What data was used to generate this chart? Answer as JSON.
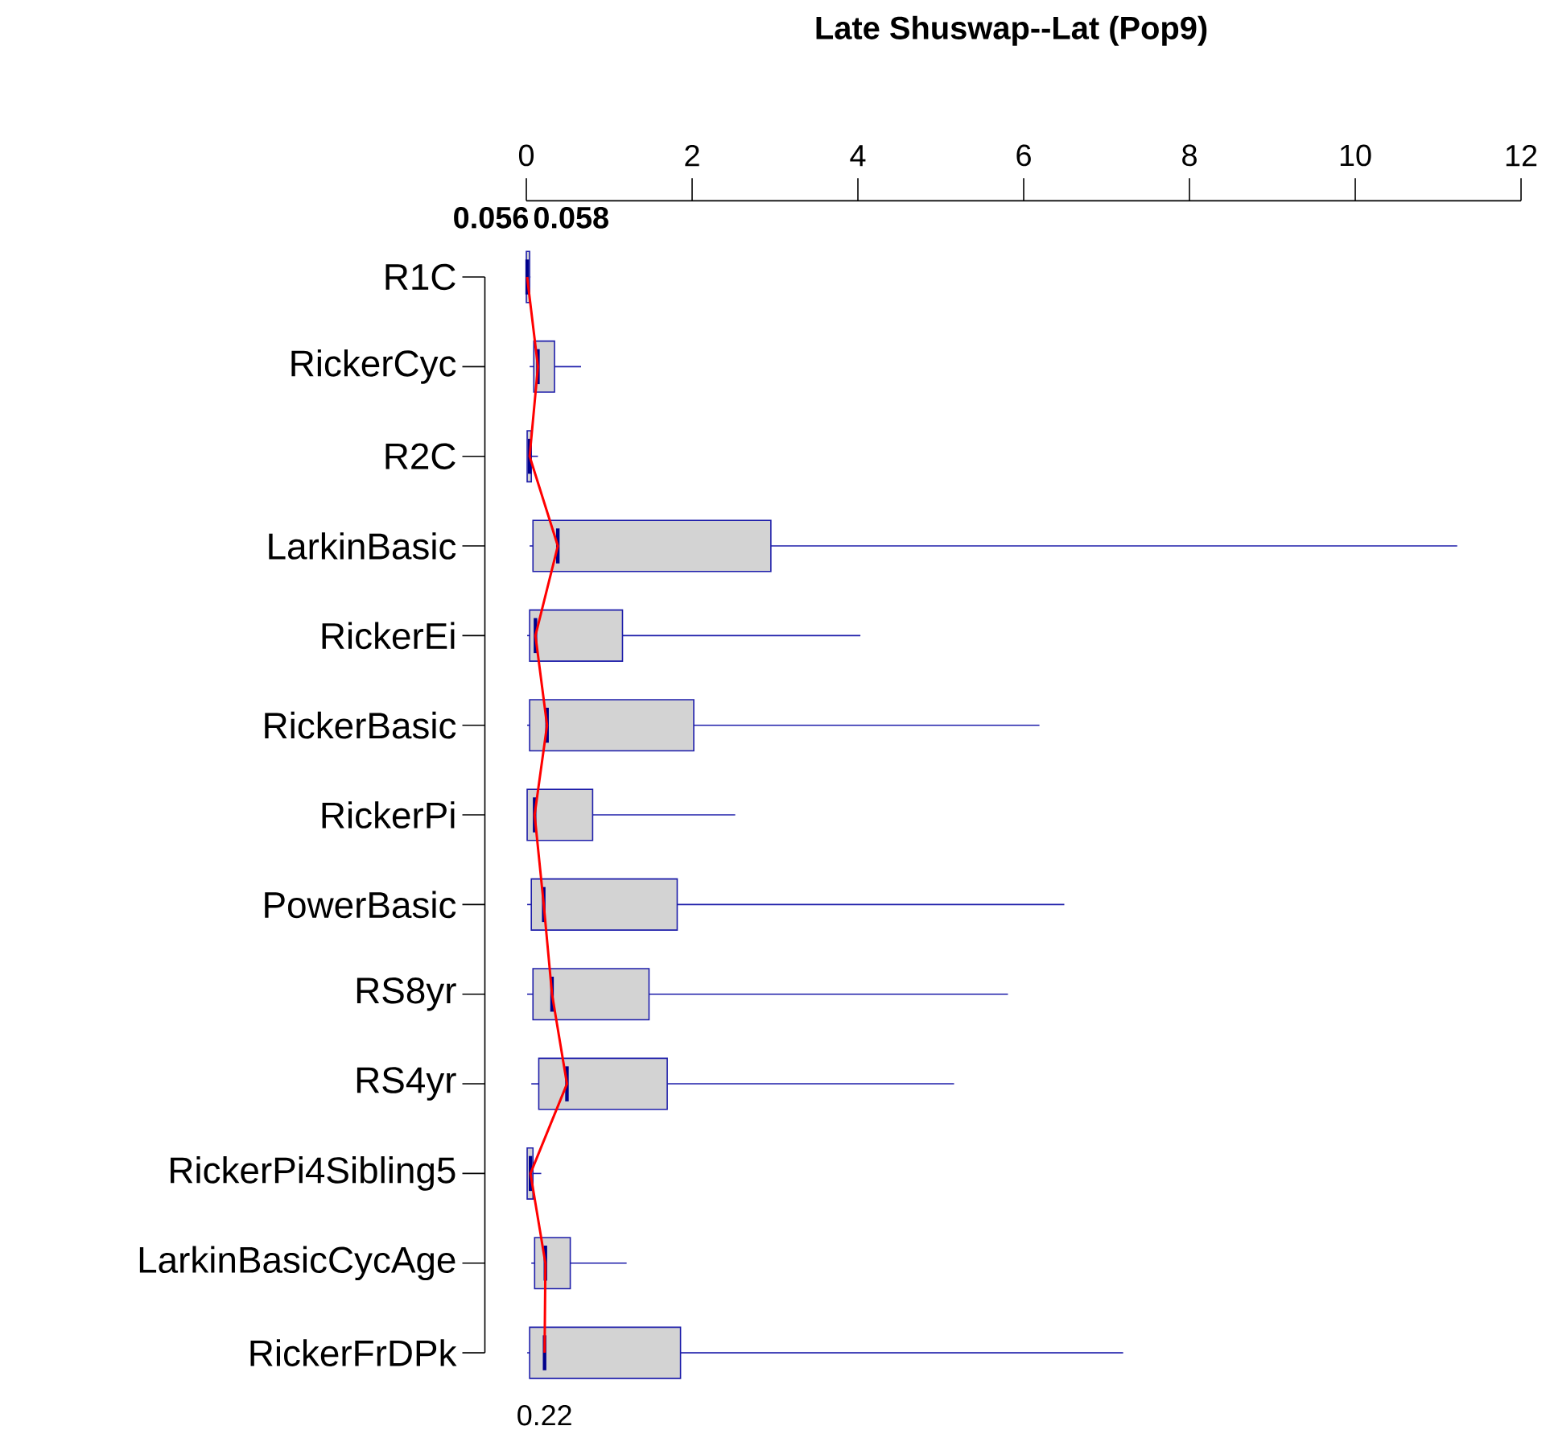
{
  "chart_data": {
    "type": "box",
    "orientation": "horizontal",
    "title": "Late Shuswap--Lat (Pop9)",
    "categories": [
      "R1C",
      "RickerCyc",
      "R2C",
      "LarkinBasic",
      "RickerEi",
      "RickerBasic",
      "RickerPi",
      "PowerBasic",
      "RS8yr",
      "RS4yr",
      "RickerPi4Sibling5",
      "LarkinBasicCycAge",
      "RickerFrDPk"
    ],
    "xlim": [
      -0.5,
      12
    ],
    "xticks": [
      0,
      2,
      4,
      6,
      8,
      10,
      12
    ],
    "series": [
      {
        "type": "box",
        "color": "#d3d3d3",
        "boxes": [
          {
            "low": 0,
            "q1": 0,
            "median": 0.01,
            "q3": 0.04,
            "high": 0.05
          },
          {
            "low": 0.04,
            "q1": 0.09,
            "median": 0.14,
            "q3": 0.34,
            "high": 0.66
          },
          {
            "low": 0.01,
            "q1": 0.01,
            "median": 0.04,
            "q3": 0.06,
            "high": 0.14
          },
          {
            "low": 0.04,
            "q1": 0.08,
            "median": 0.38,
            "q3": 2.95,
            "high": 11.23
          },
          {
            "low": 0.01,
            "q1": 0.04,
            "median": 0.11,
            "q3": 1.16,
            "high": 4.03
          },
          {
            "low": 0.01,
            "q1": 0.04,
            "median": 0.25,
            "q3": 2.02,
            "high": 6.19
          },
          {
            "low": 0.01,
            "q1": 0.01,
            "median": 0.1,
            "q3": 0.8,
            "high": 2.52
          },
          {
            "low": 0.01,
            "q1": 0.06,
            "median": 0.21,
            "q3": 1.82,
            "high": 6.49
          },
          {
            "low": 0.01,
            "q1": 0.08,
            "median": 0.31,
            "q3": 1.48,
            "high": 5.81
          },
          {
            "low": 0.06,
            "q1": 0.15,
            "median": 0.49,
            "q3": 1.7,
            "high": 5.16
          },
          {
            "low": 0.01,
            "q1": 0.01,
            "median": 0.05,
            "q3": 0.08,
            "high": 0.18
          },
          {
            "low": 0.06,
            "q1": 0.1,
            "median": 0.23,
            "q3": 0.53,
            "high": 1.21
          },
          {
            "low": 0.01,
            "q1": 0.04,
            "median": 0.22,
            "q3": 1.86,
            "high": 7.2
          }
        ]
      },
      {
        "type": "line",
        "color": "#ff0000",
        "values": [
          0.01,
          0.14,
          0.04,
          0.38,
          0.11,
          0.25,
          0.1,
          0.21,
          0.31,
          0.49,
          0.05,
          0.23,
          0.22
        ]
      }
    ],
    "annotations": [
      {
        "text": "0.056",
        "x": 0.056,
        "y": "R1C"
      },
      {
        "text": "0.058",
        "x": 0.058,
        "y": "R1C"
      },
      {
        "text": "0.22",
        "x": 0.22,
        "y": "RickerFrDPk"
      }
    ]
  }
}
